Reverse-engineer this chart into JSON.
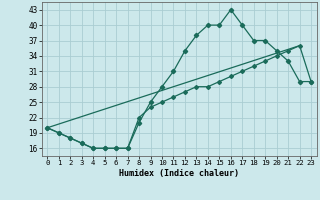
{
  "xlabel": "Humidex (Indice chaleur)",
  "bg_color": "#cce8eb",
  "grid_color": "#aacdd2",
  "line_color": "#1a6b5a",
  "x_ticks": [
    0,
    1,
    2,
    3,
    4,
    5,
    6,
    7,
    8,
    9,
    10,
    11,
    12,
    13,
    14,
    15,
    16,
    17,
    18,
    19,
    20,
    21,
    22,
    23
  ],
  "y_ticks": [
    16,
    19,
    22,
    25,
    28,
    31,
    34,
    37,
    40,
    43
  ],
  "ylim": [
    14.5,
    44.5
  ],
  "xlim": [
    -0.5,
    23.5
  ],
  "line1_x": [
    0,
    1,
    2,
    3,
    4,
    5,
    6,
    7,
    8,
    9,
    10,
    11,
    12,
    13,
    14,
    15,
    16,
    17,
    18,
    19,
    20,
    21,
    22,
    23
  ],
  "line1_y": [
    20,
    19,
    18,
    17,
    16,
    16,
    16,
    16,
    21,
    25,
    28,
    31,
    35,
    38,
    40,
    40,
    43,
    40,
    37,
    37,
    35,
    33,
    29,
    29
  ],
  "line2_x": [
    0,
    1,
    2,
    3,
    4,
    5,
    6,
    7,
    8,
    9,
    10,
    11,
    12,
    13,
    14,
    15,
    16,
    17,
    18,
    19,
    20,
    21,
    22,
    23
  ],
  "line2_y": [
    20,
    19,
    18,
    17,
    16,
    16,
    16,
    16,
    22,
    24,
    25,
    26,
    27,
    28,
    28,
    29,
    30,
    31,
    32,
    33,
    34,
    35,
    36,
    29
  ],
  "line3_x": [
    0,
    22
  ],
  "line3_y": [
    20,
    36
  ]
}
